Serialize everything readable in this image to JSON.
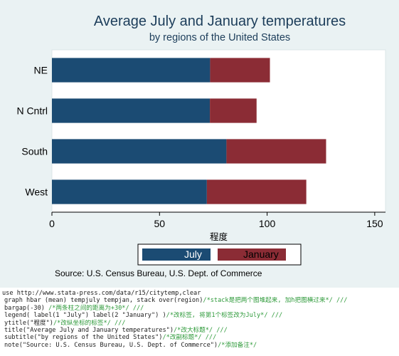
{
  "chart_data": {
    "type": "bar",
    "orientation": "horizontal",
    "stacked": true,
    "title": "Average July and January temperatures",
    "subtitle": "by regions of the United States",
    "categories": [
      "NE",
      "N Cntrl",
      "South",
      "West"
    ],
    "series": [
      {
        "name": "July",
        "values": [
          73.5,
          73.4,
          81.1,
          72.0
        ],
        "color": "#1b4b73"
      },
      {
        "name": "January",
        "values": [
          27.8,
          21.7,
          46.3,
          46.2
        ],
        "color": "#8b2c35"
      }
    ],
    "xlabel": "程度",
    "xlim": [
      0,
      155
    ],
    "xticks": [
      0,
      50,
      100,
      150
    ],
    "note": "Source: U.S. Census Bureau, U.S. Dept. of Commerce",
    "legend_position": "bottom",
    "grid": false,
    "background": "#eaf2f3"
  },
  "code": {
    "lines": [
      {
        "code": "use http://www.stata-press.com/data/r15/citytemp,clear",
        "comment": "",
        "indent": false
      },
      {
        "code": "graph hbar (mean) tempjuly tempjan, stack over(region)",
        "comment": "/*stack是把两个图堆起来, 加h把图横过来*/ ///",
        "indent": true
      },
      {
        "code": "bargap(-30) ",
        "comment": "/*两条柱之间的距离为+30*/ ///",
        "indent": true
      },
      {
        "code": "legend( label(1 \"July\") label(2 \"January\") )",
        "comment": "/*改标签, 将第1个标签改为July*/ ///",
        "indent": true
      },
      {
        "code": "ytitle(\"程度\")",
        "comment": "/*改纵坐标的标签*/ ///",
        "indent": true
      },
      {
        "code": "title(\"Average July and January temperatures\")",
        "comment": "/*改大标题*/ ///",
        "indent": true
      },
      {
        "code": "subtitle(\"by regions of the United States\")",
        "comment": "/*改副标题*/ ///",
        "indent": true
      },
      {
        "code": "note(\"Source: U.S. Census Bureau, U.S. Dept. of Commerce\")",
        "comment": "/*添加备注*/",
        "indent": true
      }
    ]
  }
}
